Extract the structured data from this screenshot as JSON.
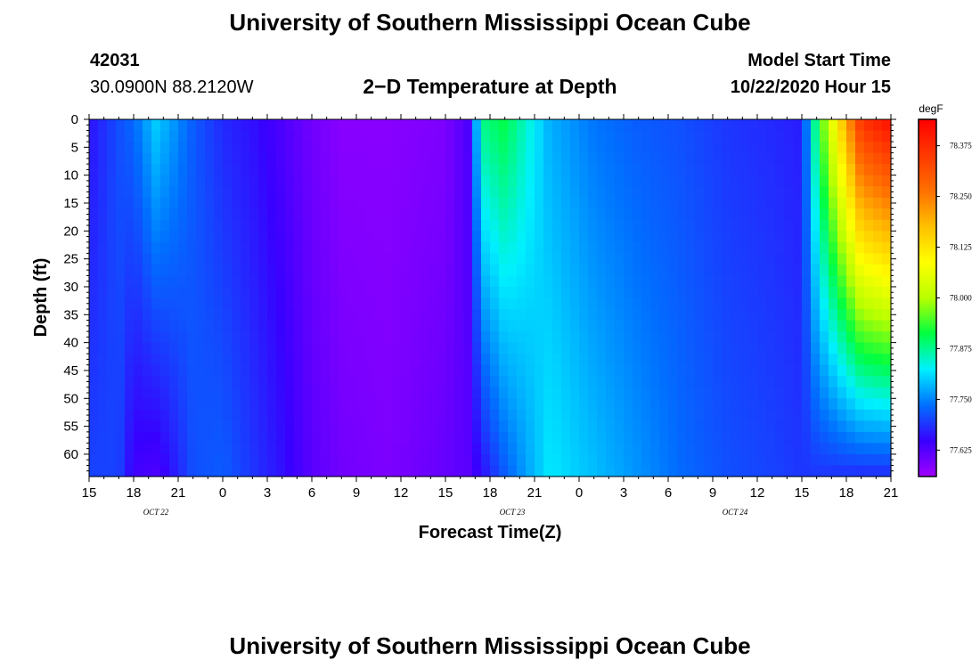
{
  "header": {
    "title": "University of Southern Mississippi Ocean Cube",
    "station_id": "42031",
    "station_location": "30.0900N 88.2120W",
    "plot_title": "2−D Temperature at Depth",
    "model_label": "Model Start Time",
    "model_time": "10/22/2020 Hour 15"
  },
  "footer": {
    "title": "University of Southern Mississippi Ocean Cube"
  },
  "chart_data": {
    "type": "heatmap",
    "title": "2−D Temperature at Depth",
    "xlabel": "Forecast Time(Z)",
    "ylabel": "Depth (ft)",
    "x_tick_labels": [
      "15",
      "18",
      "21",
      "0",
      "3",
      "6",
      "9",
      "12",
      "15",
      "18",
      "21",
      "0",
      "3",
      "6",
      "9",
      "12",
      "15",
      "18",
      "21"
    ],
    "date_labels": [
      "OCT 22",
      "OCT 23",
      "OCT 24"
    ],
    "y_tick_labels": [
      "0",
      "5",
      "10",
      "15",
      "20",
      "25",
      "30",
      "35",
      "40",
      "45",
      "50",
      "55",
      "60"
    ],
    "ylim": [
      0,
      64
    ],
    "y_reversed": true,
    "x_range_hours": [
      0,
      54
    ],
    "colorbar": {
      "unit": "degF",
      "tick_labels": [
        "78.375",
        "78.250",
        "78.125",
        "78.000",
        "77.875",
        "77.750",
        "77.625"
      ],
      "range": [
        77.56,
        78.44
      ],
      "colors": [
        "#a000ff",
        "#3800ff",
        "#0070ff",
        "#00f0ff",
        "#00ff40",
        "#b8ff00",
        "#ffff00",
        "#ffc000",
        "#ff7000",
        "#ff3800",
        "#ff0000"
      ]
    },
    "columns": [
      {
        "h": 0,
        "top": 77.66,
        "bottom": 77.7
      },
      {
        "h": 2,
        "top": 77.71,
        "bottom": 77.7
      },
      {
        "h": 3,
        "top": 77.73,
        "bottom": 77.64
      },
      {
        "h": 4.5,
        "top": 77.8,
        "bottom": 77.63
      },
      {
        "h": 5.5,
        "top": 77.77,
        "bottom": 77.66
      },
      {
        "h": 7,
        "top": 77.72,
        "bottom": 77.71
      },
      {
        "h": 9,
        "top": 77.68,
        "bottom": 77.72
      },
      {
        "h": 11,
        "top": 77.66,
        "bottom": 77.69
      },
      {
        "h": 13,
        "top": 77.63,
        "bottom": 77.66
      },
      {
        "h": 15,
        "top": 77.6,
        "bottom": 77.62
      },
      {
        "h": 17,
        "top": 77.58,
        "bottom": 77.6
      },
      {
        "h": 20,
        "top": 77.58,
        "bottom": 77.59
      },
      {
        "h": 24,
        "top": 77.59,
        "bottom": 77.61
      },
      {
        "h": 25.5,
        "top": 77.63,
        "bottom": 77.62
      },
      {
        "h": 26.5,
        "top": 77.88,
        "bottom": 77.66
      },
      {
        "h": 28,
        "top": 77.91,
        "bottom": 77.72
      },
      {
        "h": 31,
        "top": 77.78,
        "bottom": 77.82
      },
      {
        "h": 34,
        "top": 77.74,
        "bottom": 77.79
      },
      {
        "h": 37,
        "top": 77.72,
        "bottom": 77.76
      },
      {
        "h": 40,
        "top": 77.71,
        "bottom": 77.73
      },
      {
        "h": 43,
        "top": 77.69,
        "bottom": 77.71
      },
      {
        "h": 46,
        "top": 77.68,
        "bottom": 77.7
      },
      {
        "h": 48,
        "top": 77.67,
        "bottom": 77.69
      },
      {
        "h": 49,
        "top": 77.9,
        "bottom": 77.69
      },
      {
        "h": 52,
        "top": 78.36,
        "bottom": 77.68
      },
      {
        "h": 54,
        "top": 78.42,
        "bottom": 77.68
      }
    ]
  }
}
